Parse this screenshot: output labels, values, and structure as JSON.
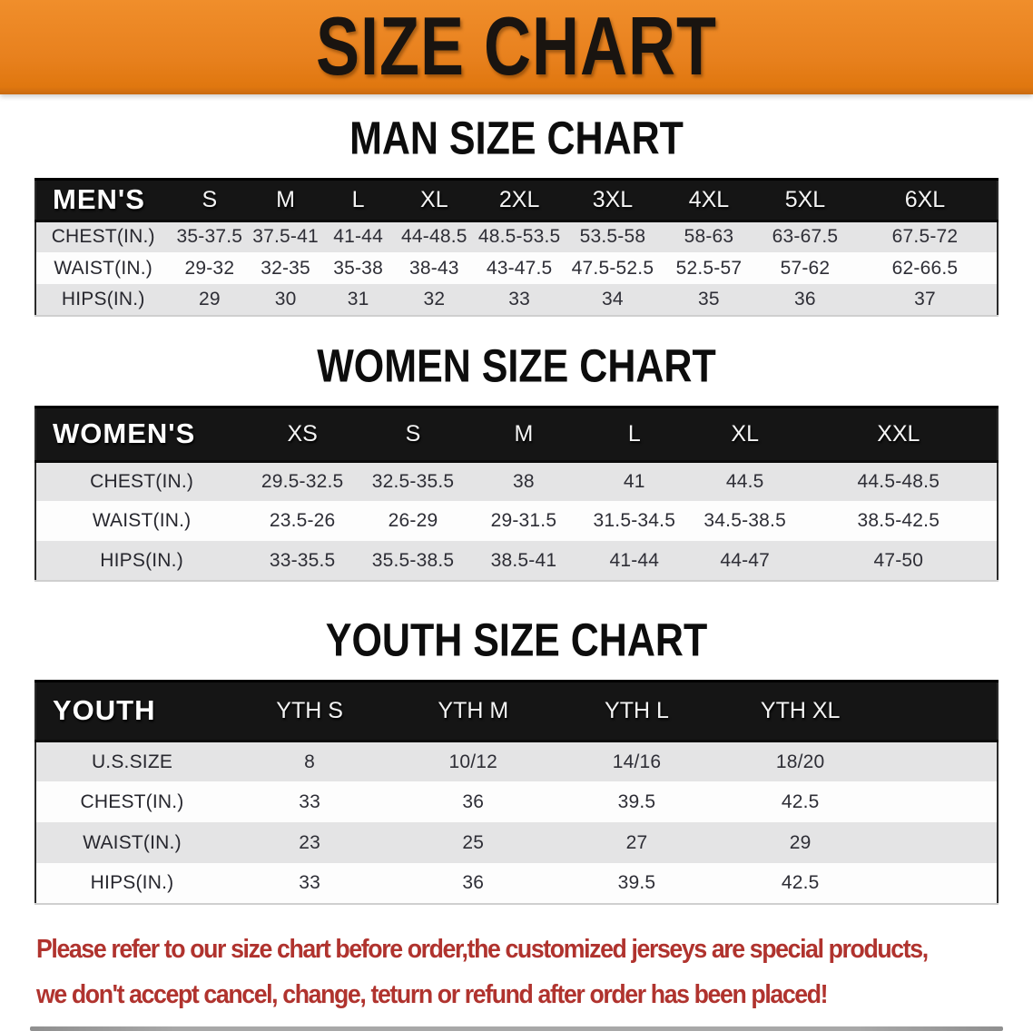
{
  "banner": {
    "title": "SIZE CHART",
    "bg_color": "#e8811e",
    "text_color": "#191410"
  },
  "sections": [
    {
      "id": "men",
      "title": "MAN SIZE CHART",
      "group_label": "MEN'S",
      "header_bg": "#151515",
      "sizes": [
        "S",
        "M",
        "L",
        "XL",
        "2XL",
        "3XL",
        "4XL",
        "5XL",
        "6XL"
      ],
      "rows": [
        {
          "label": "CHEST(IN.)",
          "values": [
            "35-37.5",
            "37.5-41",
            "41-44",
            "44-48.5",
            "48.5-53.5",
            "53.5-58",
            "58-63",
            "63-67.5",
            "67.5-72"
          ]
        },
        {
          "label": "WAIST(IN.)",
          "values": [
            "29-32",
            "32-35",
            "35-38",
            "38-43",
            "43-47.5",
            "47.5-52.5",
            "52.5-57",
            "57-62",
            "62-66.5"
          ]
        },
        {
          "label": "HIPS(IN.)",
          "values": [
            "29",
            "30",
            "31",
            "32",
            "33",
            "34",
            "35",
            "36",
            "37"
          ]
        }
      ]
    },
    {
      "id": "women",
      "title": "WOMEN SIZE CHART",
      "group_label": "WOMEN'S",
      "header_bg": "#151515",
      "sizes": [
        "XS",
        "S",
        "M",
        "L",
        "XL",
        "XXL"
      ],
      "rows": [
        {
          "label": "CHEST(IN.)",
          "values": [
            "29.5-32.5",
            "32.5-35.5",
            "38",
            "41",
            "44.5",
            "44.5-48.5"
          ]
        },
        {
          "label": "WAIST(IN.)",
          "values": [
            "23.5-26",
            "26-29",
            "29-31.5",
            "31.5-34.5",
            "34.5-38.5",
            "38.5-42.5"
          ]
        },
        {
          "label": "HIPS(IN.)",
          "values": [
            "33-35.5",
            "35.5-38.5",
            "38.5-41",
            "41-44",
            "44-47",
            "47-50"
          ]
        }
      ]
    },
    {
      "id": "youth",
      "title": "YOUTH SIZE CHART",
      "group_label": "YOUTH",
      "header_bg": "#151515",
      "sizes": [
        "YTH S",
        "YTH M",
        "YTH L",
        "YTH XL"
      ],
      "rows": [
        {
          "label": "U.S.SIZE",
          "values": [
            "8",
            "10/12",
            "14/16",
            "18/20"
          ]
        },
        {
          "label": "CHEST(IN.)",
          "values": [
            "33",
            "36",
            "39.5",
            "42.5"
          ]
        },
        {
          "label": "WAIST(IN.)",
          "values": [
            "23",
            "25",
            "27",
            "29"
          ]
        },
        {
          "label": "HIPS(IN.)",
          "values": [
            "33",
            "36",
            "39.5",
            "42.5"
          ]
        }
      ]
    }
  ],
  "disclaimer": {
    "color": "#b0332e",
    "lines": [
      "Please refer to our size chart before order,the customized jerseys are special products,",
      "we don't accept cancel, change, teturn or refund after order has been placed!"
    ]
  }
}
